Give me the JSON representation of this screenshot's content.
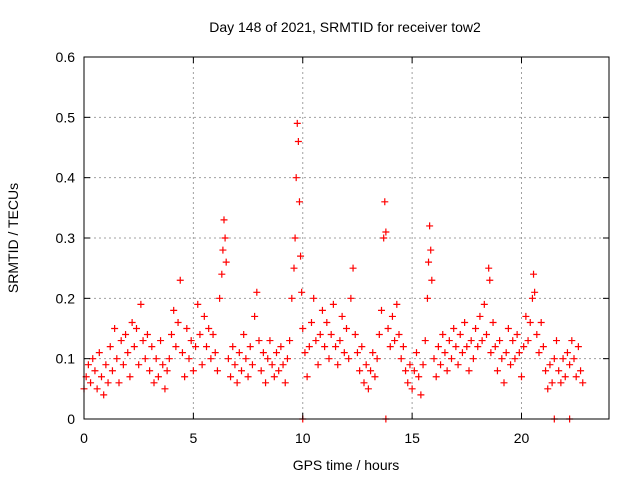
{
  "chart_data": {
    "type": "scatter",
    "title": "Day 148 of 2021, SRMTID for receiver tow2",
    "xlabel": "GPS time / hours",
    "ylabel": "SRMTID / TECUs",
    "xlim": [
      0,
      24
    ],
    "ylim": [
      0,
      0.6
    ],
    "xticks": [
      0,
      5,
      10,
      15,
      20
    ],
    "yticks": [
      0,
      0.1,
      0.2,
      0.3,
      0.4,
      0.5,
      0.6
    ],
    "xtick_labels": [
      "0",
      "5",
      "10",
      "15",
      "20"
    ],
    "ytick_labels": [
      "0",
      "0.1",
      "0.2",
      "0.3",
      "0.4",
      "0.5",
      "0.6"
    ],
    "grid": true,
    "marker": "+",
    "series_color": "#ff0000",
    "series": [
      {
        "name": "tow2",
        "points": [
          [
            0.0,
            0.05
          ],
          [
            0.1,
            0.07
          ],
          [
            0.2,
            0.09
          ],
          [
            0.3,
            0.06
          ],
          [
            0.4,
            0.1
          ],
          [
            0.5,
            0.08
          ],
          [
            0.6,
            0.05
          ],
          [
            0.7,
            0.11
          ],
          [
            0.8,
            0.07
          ],
          [
            0.9,
            0.04
          ],
          [
            1.0,
            0.09
          ],
          [
            1.1,
            0.06
          ],
          [
            1.2,
            0.12
          ],
          [
            1.3,
            0.08
          ],
          [
            1.4,
            0.15
          ],
          [
            1.5,
            0.1
          ],
          [
            1.6,
            0.06
          ],
          [
            1.7,
            0.13
          ],
          [
            1.8,
            0.09
          ],
          [
            1.9,
            0.14
          ],
          [
            2.0,
            0.11
          ],
          [
            2.1,
            0.07
          ],
          [
            2.2,
            0.16
          ],
          [
            2.3,
            0.12
          ],
          [
            2.4,
            0.15
          ],
          [
            2.5,
            0.09
          ],
          [
            2.6,
            0.19
          ],
          [
            2.7,
            0.13
          ],
          [
            2.8,
            0.1
          ],
          [
            2.9,
            0.14
          ],
          [
            3.0,
            0.08
          ],
          [
            3.1,
            0.12
          ],
          [
            3.2,
            0.06
          ],
          [
            3.3,
            0.1
          ],
          [
            3.4,
            0.07
          ],
          [
            3.5,
            0.13
          ],
          [
            3.6,
            0.09
          ],
          [
            3.7,
            0.05
          ],
          [
            3.8,
            0.08
          ],
          [
            3.9,
            0.1
          ],
          [
            4.0,
            0.14
          ],
          [
            4.1,
            0.18
          ],
          [
            4.2,
            0.12
          ],
          [
            4.3,
            0.16
          ],
          [
            4.4,
            0.23
          ],
          [
            4.5,
            0.11
          ],
          [
            4.6,
            0.07
          ],
          [
            4.7,
            0.15
          ],
          [
            4.8,
            0.1
          ],
          [
            4.9,
            0.13
          ],
          [
            5.0,
            0.08
          ],
          [
            5.1,
            0.12
          ],
          [
            5.2,
            0.19
          ],
          [
            5.3,
            0.14
          ],
          [
            5.4,
            0.09
          ],
          [
            5.5,
            0.17
          ],
          [
            5.6,
            0.12
          ],
          [
            5.7,
            0.15
          ],
          [
            5.8,
            0.1
          ],
          [
            5.9,
            0.14
          ],
          [
            6.0,
            0.11
          ],
          [
            6.1,
            0.08
          ],
          [
            6.2,
            0.2
          ],
          [
            6.3,
            0.24
          ],
          [
            6.35,
            0.28
          ],
          [
            6.4,
            0.33
          ],
          [
            6.45,
            0.3
          ],
          [
            6.5,
            0.26
          ],
          [
            6.6,
            0.1
          ],
          [
            6.7,
            0.07
          ],
          [
            6.8,
            0.12
          ],
          [
            6.9,
            0.09
          ],
          [
            7.0,
            0.06
          ],
          [
            7.1,
            0.11
          ],
          [
            7.2,
            0.08
          ],
          [
            7.3,
            0.14
          ],
          [
            7.4,
            0.1
          ],
          [
            7.5,
            0.07
          ],
          [
            7.6,
            0.12
          ],
          [
            7.7,
            0.09
          ],
          [
            7.8,
            0.17
          ],
          [
            7.9,
            0.21
          ],
          [
            8.0,
            0.13
          ],
          [
            8.1,
            0.08
          ],
          [
            8.2,
            0.11
          ],
          [
            8.3,
            0.06
          ],
          [
            8.4,
            0.1
          ],
          [
            8.5,
            0.13
          ],
          [
            8.6,
            0.09
          ],
          [
            8.7,
            0.07
          ],
          [
            8.8,
            0.11
          ],
          [
            8.9,
            0.08
          ],
          [
            9.0,
            0.12
          ],
          [
            9.1,
            0.09
          ],
          [
            9.2,
            0.06
          ],
          [
            9.3,
            0.1
          ],
          [
            9.4,
            0.13
          ],
          [
            9.5,
            0.2
          ],
          [
            9.6,
            0.25
          ],
          [
            9.65,
            0.3
          ],
          [
            9.7,
            0.4
          ],
          [
            9.75,
            0.49
          ],
          [
            9.8,
            0.46
          ],
          [
            9.85,
            0.36
          ],
          [
            9.9,
            0.27
          ],
          [
            9.95,
            0.21
          ],
          [
            10.0,
            0.15
          ],
          [
            10.1,
            0.11
          ],
          [
            10.2,
            0.07
          ],
          [
            10.3,
            0.12
          ],
          [
            10.4,
            0.16
          ],
          [
            10.5,
            0.2
          ],
          [
            10.6,
            0.13
          ],
          [
            10.7,
            0.09
          ],
          [
            10.8,
            0.14
          ],
          [
            10.9,
            0.18
          ],
          [
            11.0,
            0.12
          ],
          [
            11.1,
            0.16
          ],
          [
            11.2,
            0.1
          ],
          [
            11.3,
            0.14
          ],
          [
            11.4,
            0.19
          ],
          [
            11.5,
            0.12
          ],
          [
            11.6,
            0.09
          ],
          [
            11.7,
            0.13
          ],
          [
            11.8,
            0.17
          ],
          [
            11.9,
            0.11
          ],
          [
            12.0,
            0.15
          ],
          [
            12.1,
            0.1
          ],
          [
            12.2,
            0.2
          ],
          [
            12.3,
            0.25
          ],
          [
            12.4,
            0.14
          ],
          [
            12.5,
            0.11
          ],
          [
            12.6,
            0.08
          ],
          [
            12.7,
            0.12
          ],
          [
            12.8,
            0.06
          ],
          [
            12.9,
            0.09
          ],
          [
            13.0,
            0.05
          ],
          [
            13.1,
            0.08
          ],
          [
            13.2,
            0.11
          ],
          [
            13.3,
            0.07
          ],
          [
            13.4,
            0.1
          ],
          [
            13.5,
            0.14
          ],
          [
            13.6,
            0.18
          ],
          [
            13.7,
            0.3
          ],
          [
            13.75,
            0.36
          ],
          [
            13.8,
            0.31
          ],
          [
            13.9,
            0.15
          ],
          [
            14.0,
            0.12
          ],
          [
            14.1,
            0.17
          ],
          [
            14.2,
            0.13
          ],
          [
            14.3,
            0.19
          ],
          [
            14.4,
            0.14
          ],
          [
            14.5,
            0.1
          ],
          [
            14.6,
            0.12
          ],
          [
            14.7,
            0.08
          ],
          [
            14.8,
            0.06
          ],
          [
            14.9,
            0.09
          ],
          [
            15.0,
            0.05
          ],
          [
            15.1,
            0.08
          ],
          [
            15.2,
            0.11
          ],
          [
            15.3,
            0.07
          ],
          [
            15.4,
            0.04
          ],
          [
            15.5,
            0.09
          ],
          [
            15.6,
            0.13
          ],
          [
            15.7,
            0.2
          ],
          [
            15.75,
            0.26
          ],
          [
            15.8,
            0.32
          ],
          [
            15.85,
            0.28
          ],
          [
            15.9,
            0.23
          ],
          [
            16.0,
            0.1
          ],
          [
            16.1,
            0.07
          ],
          [
            16.2,
            0.12
          ],
          [
            16.3,
            0.09
          ],
          [
            16.4,
            0.14
          ],
          [
            16.5,
            0.11
          ],
          [
            16.6,
            0.08
          ],
          [
            16.7,
            0.13
          ],
          [
            16.8,
            0.1
          ],
          [
            16.9,
            0.15
          ],
          [
            17.0,
            0.12
          ],
          [
            17.1,
            0.09
          ],
          [
            17.2,
            0.14
          ],
          [
            17.3,
            0.11
          ],
          [
            17.4,
            0.16
          ],
          [
            17.5,
            0.12
          ],
          [
            17.6,
            0.08
          ],
          [
            17.7,
            0.13
          ],
          [
            17.8,
            0.1
          ],
          [
            17.9,
            0.15
          ],
          [
            18.0,
            0.12
          ],
          [
            18.1,
            0.17
          ],
          [
            18.2,
            0.13
          ],
          [
            18.3,
            0.19
          ],
          [
            18.4,
            0.14
          ],
          [
            18.5,
            0.25
          ],
          [
            18.55,
            0.23
          ],
          [
            18.6,
            0.11
          ],
          [
            18.7,
            0.16
          ],
          [
            18.8,
            0.12
          ],
          [
            18.9,
            0.08
          ],
          [
            19.0,
            0.13
          ],
          [
            19.1,
            0.1
          ],
          [
            19.2,
            0.06
          ],
          [
            19.3,
            0.11
          ],
          [
            19.4,
            0.15
          ],
          [
            19.5,
            0.09
          ],
          [
            19.6,
            0.13
          ],
          [
            19.7,
            0.1
          ],
          [
            19.8,
            0.14
          ],
          [
            19.9,
            0.11
          ],
          [
            20.0,
            0.07
          ],
          [
            20.1,
            0.12
          ],
          [
            20.2,
            0.17
          ],
          [
            20.3,
            0.13
          ],
          [
            20.4,
            0.16
          ],
          [
            20.5,
            0.2
          ],
          [
            20.55,
            0.24
          ],
          [
            20.6,
            0.21
          ],
          [
            20.7,
            0.14
          ],
          [
            20.8,
            0.11
          ],
          [
            20.9,
            0.16
          ],
          [
            21.0,
            0.12
          ],
          [
            21.1,
            0.08
          ],
          [
            21.2,
            0.05
          ],
          [
            21.3,
            0.09
          ],
          [
            21.4,
            0.06
          ],
          [
            21.5,
            0.1
          ],
          [
            21.6,
            0.13
          ],
          [
            21.7,
            0.08
          ],
          [
            21.8,
            0.06
          ],
          [
            21.9,
            0.1
          ],
          [
            22.0,
            0.07
          ],
          [
            22.1,
            0.11
          ],
          [
            22.2,
            0.09
          ],
          [
            22.3,
            0.13
          ],
          [
            22.4,
            0.1
          ],
          [
            22.5,
            0.07
          ],
          [
            22.6,
            0.12
          ],
          [
            22.7,
            0.08
          ],
          [
            22.8,
            0.06
          ],
          [
            10.0,
            0.0
          ],
          [
            13.8,
            0.0
          ],
          [
            21.5,
            0.0
          ],
          [
            22.2,
            0.0
          ]
        ]
      }
    ]
  }
}
